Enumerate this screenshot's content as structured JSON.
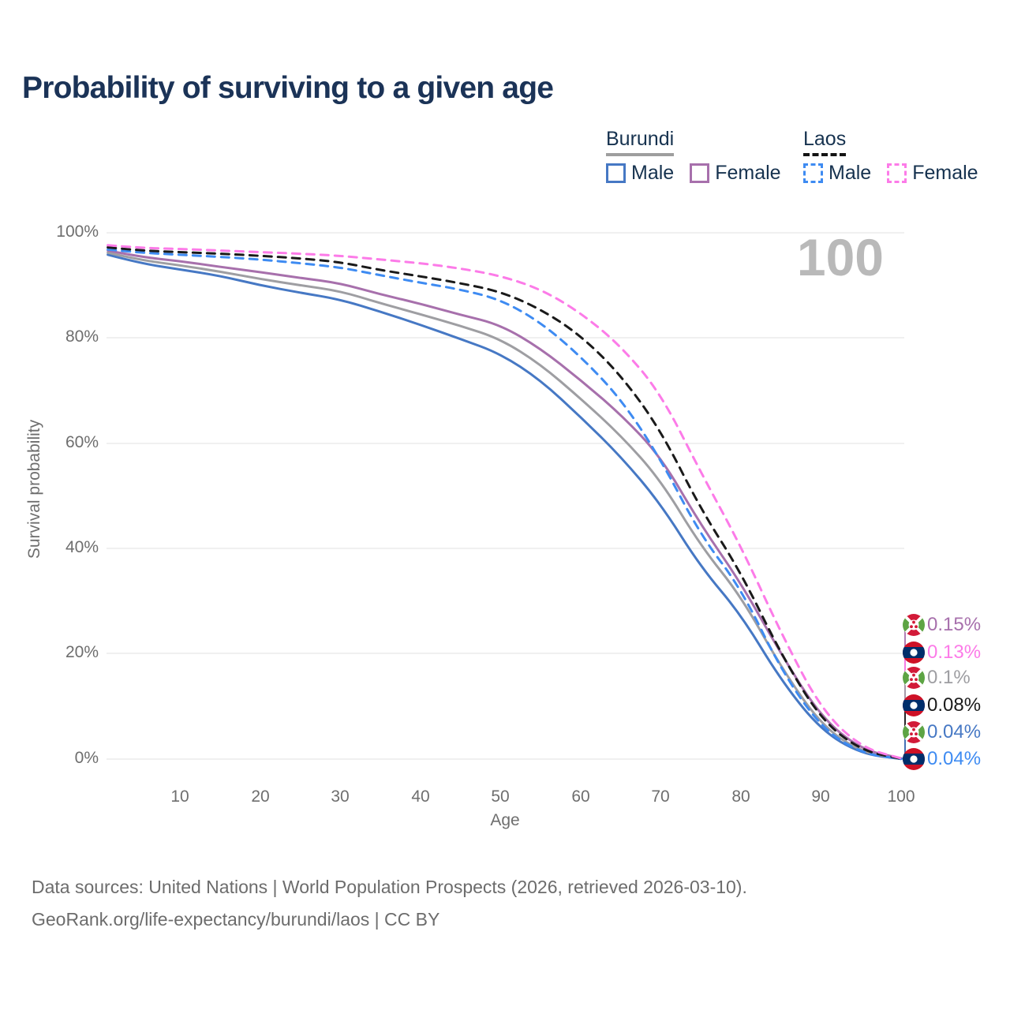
{
  "title": "Probability of surviving to a given age",
  "watermark_age": "100",
  "legend": {
    "groups": [
      {
        "label": "Burundi",
        "line_style": "solid",
        "items": [
          {
            "label": "Male",
            "color": "#4678c4"
          },
          {
            "label": "Female",
            "color": "#a770ac"
          }
        ]
      },
      {
        "label": "Laos",
        "line_style": "dashed",
        "items": [
          {
            "label": "Male",
            "color": "#3e8bf2"
          },
          {
            "label": "Female",
            "color": "#fc7be8"
          }
        ]
      }
    ]
  },
  "chart_data": {
    "type": "line",
    "title": "Probability of surviving to a given age",
    "xlabel": "Age",
    "ylabel": "Survival probability",
    "xlim": [
      0,
      100
    ],
    "ylim": [
      0,
      100
    ],
    "grid": "horizontal",
    "x_ticks": [
      "10",
      "20",
      "30",
      "40",
      "50",
      "60",
      "70",
      "80",
      "90",
      "100"
    ],
    "y_ticks": [
      "100%",
      "80%",
      "60%",
      "40%",
      "20%",
      "0%"
    ],
    "ages": [
      1,
      5,
      10,
      15,
      20,
      25,
      30,
      35,
      40,
      45,
      50,
      55,
      60,
      65,
      70,
      75,
      80,
      85,
      90,
      95,
      100
    ],
    "series": [
      {
        "id": "burundi-male",
        "name": "Burundi Male",
        "country": "Burundi",
        "sex": "Male",
        "color": "#4678c4",
        "dashed": false,
        "values": [
          95.8,
          94.2,
          93.0,
          91.8,
          90.0,
          88.6,
          87.3,
          85.0,
          82.5,
          79.8,
          77.0,
          72.0,
          65.0,
          57.5,
          48.5,
          36.5,
          27.5,
          15.0,
          5.5,
          1.0,
          0.04
        ]
      },
      {
        "id": "burundi-average",
        "name": "Burundi Average",
        "country": "Burundi",
        "sex": "Both",
        "color": "#9e9ea2",
        "dashed": false,
        "values": [
          96.2,
          94.8,
          93.8,
          92.6,
          91.2,
          90.0,
          88.9,
          86.6,
          84.5,
          82.3,
          79.8,
          75.0,
          68.5,
          61.5,
          53.0,
          40.5,
          31.0,
          17.5,
          6.5,
          1.3,
          0.1
        ]
      },
      {
        "id": "burundi-female",
        "name": "Burundi Female",
        "country": "Burundi",
        "sex": "Female",
        "color": "#a770ac",
        "dashed": false,
        "values": [
          96.6,
          95.4,
          94.6,
          93.5,
          92.5,
          91.4,
          90.4,
          88.3,
          86.5,
          84.4,
          82.5,
          78.0,
          72.0,
          65.5,
          57.5,
          44.5,
          33.5,
          20.0,
          8.0,
          1.8,
          0.15
        ]
      },
      {
        "id": "laos-male",
        "name": "Laos Male",
        "country": "Laos",
        "sex": "Male",
        "color": "#3e8bf2",
        "dashed": true,
        "values": [
          96.8,
          96.2,
          95.8,
          95.4,
          94.9,
          94.2,
          93.4,
          91.9,
          90.5,
          89.2,
          87.3,
          83.0,
          76.5,
          68.5,
          57.0,
          42.5,
          32.5,
          17.0,
          6.0,
          1.1,
          0.04
        ]
      },
      {
        "id": "laos-average",
        "name": "Laos Average",
        "country": "Laos",
        "sex": "Both",
        "color": "#1a1a1a",
        "dashed": true,
        "values": [
          97.2,
          96.6,
          96.3,
          96.0,
          95.6,
          95.1,
          94.4,
          92.9,
          91.7,
          90.4,
          88.8,
          85.5,
          80.5,
          73.0,
          62.5,
          47.5,
          35.5,
          20.0,
          7.5,
          1.6,
          0.08
        ]
      },
      {
        "id": "laos-female",
        "name": "Laos Female",
        "country": "Laos",
        "sex": "Female",
        "color": "#fc7be8",
        "dashed": true,
        "values": [
          97.6,
          97.1,
          96.9,
          96.6,
          96.3,
          96.0,
          95.6,
          94.9,
          94.2,
          93.2,
          91.8,
          89.3,
          84.8,
          78.5,
          69.5,
          54.5,
          40.5,
          24.0,
          9.5,
          2.2,
          0.13
        ]
      }
    ],
    "end_labels": [
      {
        "flag": "burundi",
        "label": "0.15%",
        "color": "#a770ac",
        "series": "burundi-female"
      },
      {
        "flag": "laos",
        "label": "0.13%",
        "color": "#fc7be8",
        "series": "laos-female"
      },
      {
        "flag": "burundi",
        "label": "0.1%",
        "color": "#9e9ea2",
        "series": "burundi-average"
      },
      {
        "flag": "laos",
        "label": "0.08%",
        "color": "#1a1a1a",
        "series": "laos-average"
      },
      {
        "flag": "burundi",
        "label": "0.04%",
        "color": "#4678c4",
        "series": "burundi-male"
      },
      {
        "flag": "laos",
        "label": "0.04%",
        "color": "#3e8bf2",
        "series": "laos-male"
      }
    ]
  },
  "footer": {
    "line1": "Data sources: United Nations | World Population Prospects (2026, retrieved 2026-03-10).",
    "line2": "GeoRank.org/life-expectancy/burundi/laos | CC BY"
  }
}
